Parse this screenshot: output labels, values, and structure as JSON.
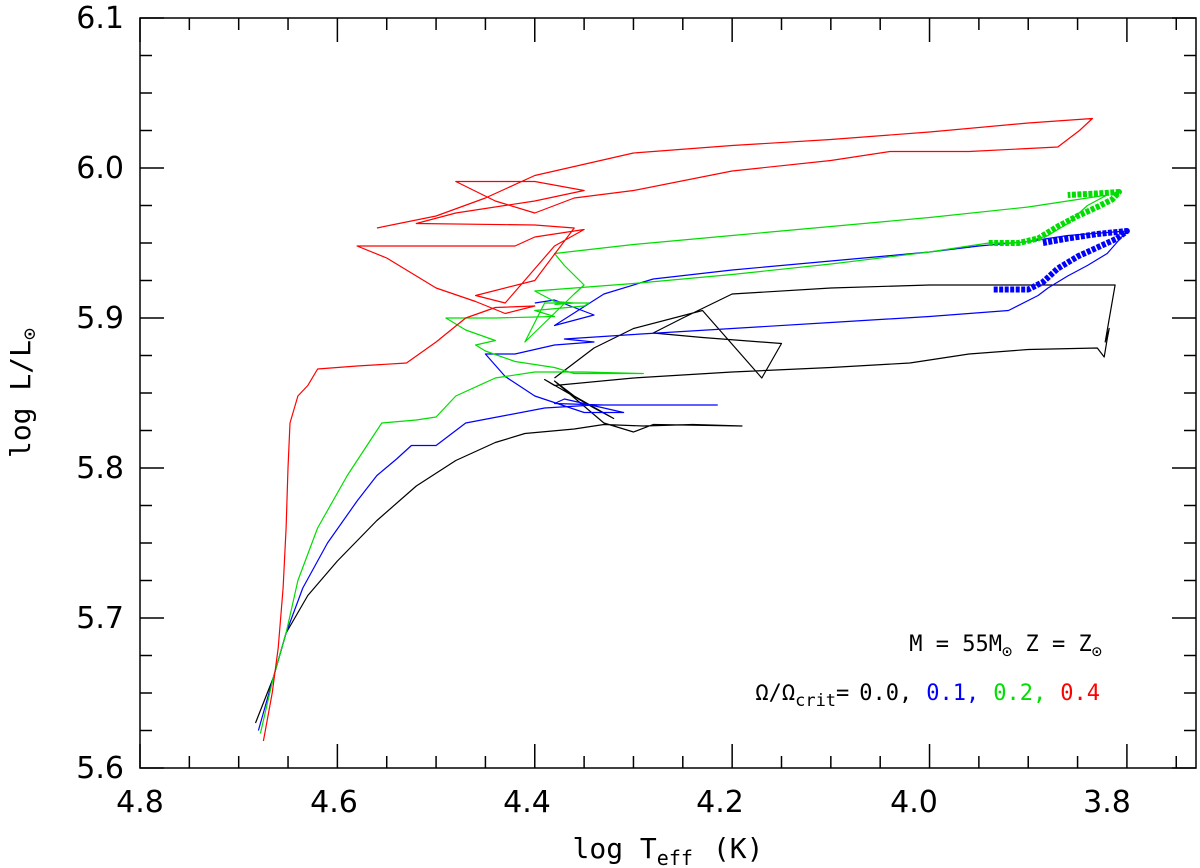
{
  "chart_data": {
    "type": "line",
    "xlabel": "log T",
    "xlabel_sub": "eff",
    "xlabel_unit": "(K)",
    "ylabel": "log L/L",
    "ylabel_sub": "⊙",
    "xlim": [
      4.8,
      3.73
    ],
    "ylim": [
      5.6,
      6.1
    ],
    "x_ticks": [
      "4.8",
      "4.6",
      "4.4",
      "4.2",
      "4.0",
      "3.8"
    ],
    "y_ticks": [
      "5.6",
      "5.7",
      "5.8",
      "5.9",
      "6.0",
      "6.1"
    ],
    "grid": false,
    "legend": "bottom-right",
    "annotation_mass": "M  =  55M",
    "annotation_mass_sub": "⊙",
    "annotation_z": "  Z  =  Z",
    "annotation_z_sub": "⊙",
    "annotation_omega": "Ω/Ω",
    "annotation_omega_sub": "crit",
    "annotation_omega_eq": "=",
    "series": [
      {
        "label": "0.0,",
        "color": "#000000",
        "points": [
          [
            4.683,
            5.63
          ],
          [
            4.665,
            5.66
          ],
          [
            4.652,
            5.69
          ],
          [
            4.63,
            5.715
          ],
          [
            4.6,
            5.738
          ],
          [
            4.56,
            5.765
          ],
          [
            4.52,
            5.788
          ],
          [
            4.48,
            5.805
          ],
          [
            4.44,
            5.817
          ],
          [
            4.41,
            5.823
          ],
          [
            4.36,
            5.826
          ],
          [
            4.33,
            5.829
          ],
          [
            4.29,
            5.828
          ],
          [
            4.24,
            5.829
          ],
          [
            4.19,
            5.828
          ],
          [
            4.28,
            5.829
          ],
          [
            4.3,
            5.824
          ],
          [
            4.33,
            5.83
          ],
          [
            4.38,
            5.858
          ],
          [
            4.36,
            5.848
          ],
          [
            4.32,
            5.833
          ],
          [
            4.34,
            5.84
          ],
          [
            4.39,
            5.859
          ],
          [
            4.38,
            5.855
          ],
          [
            4.3,
            5.86
          ],
          [
            4.2,
            5.864
          ],
          [
            4.1,
            5.867
          ],
          [
            4.02,
            5.87
          ],
          [
            3.96,
            5.876
          ],
          [
            3.9,
            5.879
          ],
          [
            3.83,
            5.88
          ],
          [
            3.823,
            5.874
          ],
          [
            3.82,
            5.886
          ],
          [
            3.818,
            5.893
          ],
          [
            3.822,
            5.884
          ],
          [
            3.812,
            5.922
          ],
          [
            3.9,
            5.922
          ],
          [
            4.0,
            5.922
          ],
          [
            4.1,
            5.92
          ],
          [
            4.2,
            5.916
          ],
          [
            4.25,
            5.9
          ],
          [
            4.28,
            5.89
          ],
          [
            4.23,
            5.887
          ],
          [
            4.15,
            5.883
          ],
          [
            4.17,
            5.86
          ],
          [
            4.23,
            5.905
          ],
          [
            4.3,
            5.893
          ],
          [
            4.34,
            5.88
          ],
          [
            4.38,
            5.86
          ]
        ]
      },
      {
        "label": "0.1,",
        "color": "#0000ff",
        "points": [
          [
            4.68,
            5.625
          ],
          [
            4.665,
            5.66
          ],
          [
            4.652,
            5.69
          ],
          [
            4.635,
            5.72
          ],
          [
            4.61,
            5.75
          ],
          [
            4.58,
            5.778
          ],
          [
            4.56,
            5.795
          ],
          [
            4.54,
            5.806
          ],
          [
            4.525,
            5.815
          ],
          [
            4.5,
            5.815
          ],
          [
            4.47,
            5.83
          ],
          [
            4.43,
            5.835
          ],
          [
            4.39,
            5.84
          ],
          [
            4.34,
            5.842
          ],
          [
            4.28,
            5.842
          ],
          [
            4.215,
            5.842
          ],
          [
            4.27,
            5.842
          ],
          [
            4.33,
            5.842
          ],
          [
            4.38,
            5.843
          ],
          [
            4.37,
            5.846
          ],
          [
            4.31,
            5.837
          ],
          [
            4.35,
            5.837
          ],
          [
            4.4,
            5.848
          ],
          [
            4.43,
            5.861
          ],
          [
            4.45,
            5.876
          ],
          [
            4.42,
            5.876
          ],
          [
            4.38,
            5.882
          ],
          [
            4.34,
            5.884
          ],
          [
            4.37,
            5.886
          ],
          [
            4.3,
            5.889
          ],
          [
            4.2,
            5.893
          ],
          [
            4.1,
            5.897
          ],
          [
            4.0,
            5.901
          ],
          [
            3.92,
            5.905
          ],
          [
            3.89,
            5.915
          ],
          [
            3.88,
            5.92
          ],
          [
            3.86,
            5.928
          ],
          [
            3.84,
            5.935
          ],
          [
            3.82,
            5.943
          ],
          [
            3.8,
            5.958
          ],
          [
            3.86,
            5.955
          ],
          [
            3.9,
            5.951
          ],
          [
            3.95,
            5.948
          ],
          [
            4.0,
            5.944
          ],
          [
            4.1,
            5.938
          ],
          [
            4.2,
            5.932
          ],
          [
            4.28,
            5.926
          ],
          [
            4.33,
            5.916
          ],
          [
            4.38,
            5.895
          ],
          [
            4.34,
            5.902
          ],
          [
            4.38,
            5.912
          ],
          [
            4.4,
            5.91
          ]
        ]
      },
      {
        "label": "0.2,",
        "color": "#00dd00",
        "points": [
          [
            4.678,
            5.623
          ],
          [
            4.665,
            5.66
          ],
          [
            4.652,
            5.69
          ],
          [
            4.64,
            5.725
          ],
          [
            4.62,
            5.76
          ],
          [
            4.59,
            5.795
          ],
          [
            4.565,
            5.82
          ],
          [
            4.555,
            5.83
          ],
          [
            4.52,
            5.832
          ],
          [
            4.5,
            5.834
          ],
          [
            4.48,
            5.848
          ],
          [
            4.44,
            5.86
          ],
          [
            4.4,
            5.864
          ],
          [
            4.35,
            5.864
          ],
          [
            4.29,
            5.863
          ],
          [
            4.33,
            5.863
          ],
          [
            4.36,
            5.863
          ],
          [
            4.38,
            5.867
          ],
          [
            4.42,
            5.871
          ],
          [
            4.45,
            5.878
          ],
          [
            4.46,
            5.882
          ],
          [
            4.44,
            5.885
          ],
          [
            4.47,
            5.892
          ],
          [
            4.49,
            5.9
          ],
          [
            4.44,
            5.9
          ],
          [
            4.38,
            5.901
          ],
          [
            4.4,
            5.905
          ],
          [
            4.35,
            5.908
          ],
          [
            4.345,
            5.91
          ],
          [
            4.39,
            5.91
          ],
          [
            4.41,
            5.884
          ],
          [
            4.36,
            5.916
          ],
          [
            4.35,
            5.922
          ],
          [
            4.37,
            5.935
          ],
          [
            4.38,
            5.943
          ],
          [
            4.3,
            5.949
          ],
          [
            4.2,
            5.955
          ],
          [
            4.1,
            5.961
          ],
          [
            4.0,
            5.967
          ],
          [
            3.9,
            5.974
          ],
          [
            3.82,
            5.982
          ],
          [
            3.84,
            5.975
          ],
          [
            3.86,
            5.963
          ],
          [
            3.88,
            5.955
          ],
          [
            3.9,
            5.951
          ],
          [
            3.92,
            5.95
          ],
          [
            3.94,
            5.95
          ],
          [
            4.0,
            5.944
          ],
          [
            4.1,
            5.936
          ],
          [
            4.2,
            5.929
          ],
          [
            4.3,
            5.923
          ],
          [
            4.4,
            5.918
          ],
          [
            4.38,
            5.911
          ],
          [
            4.36,
            5.91
          ],
          [
            4.38,
            5.909
          ]
        ]
      },
      {
        "label": "0.4",
        "color": "#ff0000",
        "points": [
          [
            4.675,
            5.618
          ],
          [
            4.666,
            5.65
          ],
          [
            4.66,
            5.68
          ],
          [
            4.655,
            5.72
          ],
          [
            4.652,
            5.76
          ],
          [
            4.65,
            5.8
          ],
          [
            4.648,
            5.83
          ],
          [
            4.64,
            5.848
          ],
          [
            4.63,
            5.855
          ],
          [
            4.62,
            5.866
          ],
          [
            4.58,
            5.868
          ],
          [
            4.53,
            5.87
          ],
          [
            4.5,
            5.884
          ],
          [
            4.47,
            5.9
          ],
          [
            4.44,
            5.907
          ],
          [
            4.4,
            5.908
          ],
          [
            4.43,
            5.903
          ],
          [
            4.46,
            5.911
          ],
          [
            4.5,
            5.92
          ],
          [
            4.55,
            5.94
          ],
          [
            4.58,
            5.948
          ],
          [
            4.5,
            5.948
          ],
          [
            4.42,
            5.948
          ],
          [
            4.4,
            5.954
          ],
          [
            4.35,
            5.959
          ],
          [
            4.38,
            5.948
          ],
          [
            4.43,
            5.91
          ],
          [
            4.46,
            5.915
          ],
          [
            4.4,
            5.925
          ],
          [
            4.36,
            5.96
          ],
          [
            4.4,
            5.962
          ],
          [
            4.52,
            5.963
          ],
          [
            4.48,
            5.97
          ],
          [
            4.4,
            5.978
          ],
          [
            4.35,
            5.985
          ],
          [
            4.4,
            5.991
          ],
          [
            4.48,
            5.991
          ],
          [
            4.44,
            5.978
          ],
          [
            4.4,
            5.97
          ],
          [
            4.36,
            5.98
          ],
          [
            4.3,
            5.985
          ],
          [
            4.2,
            5.998
          ],
          [
            4.1,
            6.005
          ],
          [
            4.04,
            6.011
          ],
          [
            3.96,
            6.011
          ],
          [
            3.87,
            6.014
          ],
          [
            3.848,
            6.025
          ],
          [
            3.835,
            6.033
          ],
          [
            3.9,
            6.03
          ],
          [
            4.0,
            6.024
          ],
          [
            4.1,
            6.019
          ],
          [
            4.2,
            6.015
          ],
          [
            4.3,
            6.01
          ],
          [
            4.4,
            5.995
          ],
          [
            4.45,
            5.98
          ],
          [
            4.5,
            5.968
          ],
          [
            4.56,
            5.96
          ]
        ]
      }
    ],
    "thick_series": [
      {
        "color": "#00dd00",
        "points": [
          [
            3.94,
            5.95
          ],
          [
            3.91,
            5.95
          ],
          [
            3.89,
            5.953
          ],
          [
            3.87,
            5.961
          ],
          [
            3.85,
            5.968
          ],
          [
            3.83,
            5.974
          ],
          [
            3.815,
            5.979
          ],
          [
            3.808,
            5.984
          ],
          [
            3.83,
            5.983
          ],
          [
            3.86,
            5.982
          ]
        ]
      },
      {
        "color": "#0000ff",
        "points": [
          [
            3.935,
            5.919
          ],
          [
            3.9,
            5.919
          ],
          [
            3.885,
            5.924
          ],
          [
            3.87,
            5.933
          ],
          [
            3.85,
            5.941
          ],
          [
            3.83,
            5.947
          ],
          [
            3.81,
            5.953
          ],
          [
            3.8,
            5.958
          ],
          [
            3.83,
            5.956
          ],
          [
            3.86,
            5.953
          ],
          [
            3.885,
            5.95
          ]
        ]
      }
    ]
  }
}
